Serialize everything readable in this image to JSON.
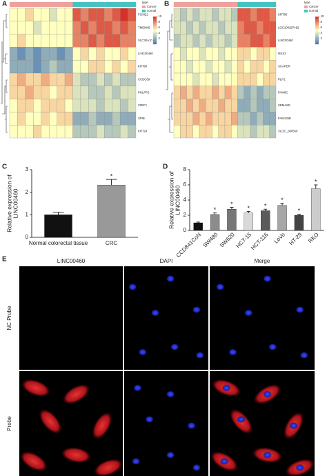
{
  "panel_labels": [
    "A",
    "B",
    "C",
    "D",
    "E"
  ],
  "chart_data": [
    {
      "type": "heatmap",
      "rows": [
        "FOXQ1",
        "TMEM45",
        "SLC30A10",
        "LINC00460",
        "KRT80",
        "CCDC69",
        "PHLPP2",
        "ZZEF1",
        "SPIB",
        "KRT24"
      ],
      "column_types": [
        "Cancer",
        "Cancer",
        "Cancer",
        "Cancer",
        "Cancer",
        "Cancer",
        "Cancer",
        "Cancer",
        "normal",
        "normal",
        "normal",
        "normal",
        "normal",
        "normal",
        "normal",
        "normal"
      ],
      "annotation_title": "type",
      "type_levels": [
        "Cancer",
        "normal"
      ],
      "type_colors": [
        "#f4a09a",
        "#3cc6c4"
      ],
      "colormap": [
        "#4575b4",
        "#ffffbf",
        "#d73027"
      ],
      "clim": [
        0,
        10
      ],
      "cticks": [
        2,
        4,
        6,
        8,
        10
      ],
      "values": [
        [
          5,
          5,
          6,
          5,
          5,
          4,
          5,
          5,
          9,
          8,
          9,
          9,
          8,
          9,
          10,
          9
        ],
        [
          5,
          5,
          5,
          4,
          5,
          5,
          5,
          5,
          8,
          9,
          8,
          9,
          9,
          8,
          9,
          8
        ],
        [
          5,
          6,
          5,
          5,
          5,
          5,
          5,
          5,
          8,
          8,
          9,
          8,
          9,
          9,
          8,
          8
        ],
        [
          2,
          1,
          2,
          1,
          2,
          2,
          1,
          2,
          5,
          6,
          5,
          6,
          5,
          5,
          6,
          5
        ],
        [
          2,
          2,
          2,
          1,
          2,
          3,
          2,
          2,
          5,
          5,
          6,
          6,
          5,
          6,
          5,
          6
        ],
        [
          6,
          7,
          6,
          6,
          7,
          6,
          6,
          7,
          4,
          3,
          3,
          4,
          3,
          4,
          3,
          3
        ],
        [
          6,
          6,
          7,
          6,
          6,
          5,
          6,
          6,
          4,
          4,
          3,
          3,
          4,
          3,
          4,
          4
        ],
        [
          5,
          6,
          6,
          5,
          6,
          6,
          6,
          5,
          4,
          4,
          4,
          3,
          4,
          4,
          3,
          4
        ],
        [
          5,
          6,
          5,
          5,
          6,
          5,
          6,
          6,
          2,
          2,
          3,
          2,
          2,
          3,
          2,
          2
        ],
        [
          5,
          5,
          5,
          6,
          5,
          5,
          5,
          5,
          3,
          3,
          3,
          4,
          3,
          3,
          4,
          3
        ]
      ]
    },
    {
      "type": "heatmap",
      "rows": [
        "KRT80",
        "LOC100287482",
        "LINC00460",
        "MSX2",
        "SCAPER",
        "PLP1",
        "FAM6C",
        "SEMA6D",
        "FAM135B",
        "XLOC_000550"
      ],
      "column_types": [
        "Cancer",
        "Cancer",
        "Cancer",
        "Cancer",
        "Cancer",
        "Cancer",
        "Cancer",
        "Cancer",
        "Cancer",
        "Cancer",
        "normal",
        "normal",
        "normal",
        "normal",
        "normal",
        "normal"
      ],
      "annotation_title": "type",
      "type_levels": [
        "Cancer",
        "normal"
      ],
      "type_colors": [
        "#f4a09a",
        "#3cc6c4"
      ],
      "colormap": [
        "#4575b4",
        "#ffffbf",
        "#d73027"
      ],
      "clim": [
        0,
        10
      ],
      "cticks": [
        2,
        4,
        6,
        8,
        10
      ],
      "values": [
        [
          4,
          3,
          4,
          3,
          4,
          4,
          3,
          4,
          4,
          3,
          9,
          9,
          8,
          9,
          9,
          8
        ],
        [
          4,
          4,
          3,
          4,
          3,
          4,
          4,
          3,
          4,
          4,
          8,
          9,
          9,
          8,
          9,
          9
        ],
        [
          3,
          4,
          4,
          3,
          4,
          3,
          4,
          4,
          3,
          4,
          8,
          8,
          9,
          9,
          8,
          9
        ],
        [
          5,
          4,
          5,
          5,
          4,
          5,
          5,
          4,
          5,
          5,
          6,
          6,
          5,
          6,
          6,
          5
        ],
        [
          5,
          5,
          4,
          5,
          5,
          4,
          5,
          5,
          4,
          5,
          6,
          5,
          6,
          6,
          5,
          6
        ],
        [
          5,
          5,
          5,
          4,
          5,
          5,
          4,
          5,
          5,
          5,
          6,
          6,
          6,
          5,
          6,
          6
        ],
        [
          6,
          7,
          6,
          7,
          6,
          6,
          7,
          6,
          7,
          6,
          3,
          2,
          3,
          2,
          3,
          3
        ],
        [
          6,
          6,
          7,
          6,
          7,
          6,
          6,
          7,
          6,
          6,
          2,
          2,
          3,
          2,
          2,
          3
        ],
        [
          6,
          6,
          6,
          7,
          6,
          7,
          6,
          6,
          6,
          7,
          3,
          3,
          2,
          3,
          2,
          2
        ],
        [
          5,
          6,
          6,
          5,
          6,
          6,
          5,
          6,
          6,
          5,
          4,
          4,
          3,
          4,
          4,
          3
        ]
      ]
    },
    {
      "type": "bar",
      "ylabel": [
        "Relative expression of",
        "LINC00460"
      ],
      "categories": [
        "Normal colorectal tissue",
        "CRC"
      ],
      "values": [
        1.0,
        2.32
      ],
      "errors": [
        0.12,
        0.25
      ],
      "annotations": [
        null,
        "*"
      ],
      "colors": [
        "#111111",
        "#999999"
      ],
      "ylim": [
        0,
        3
      ],
      "yticks": [
        0,
        1,
        2,
        3
      ]
    },
    {
      "type": "bar",
      "ylabel": [
        "Relative expression of",
        "LINC00460"
      ],
      "categories": [
        "CCD841CoN",
        "SW480",
        "SW620",
        "HCT-15",
        "HCT-116",
        "LoVo",
        "HT-29",
        "RKO"
      ],
      "values": [
        1.0,
        2.1,
        2.8,
        2.3,
        2.6,
        3.3,
        2.0,
        5.5
      ],
      "errors": [
        0.1,
        0.2,
        0.25,
        0.2,
        0.2,
        0.3,
        0.15,
        0.5
      ],
      "annotations": [
        null,
        "*",
        "*",
        "*",
        "*",
        "*",
        "*",
        "*"
      ],
      "colors": [
        "#111111",
        "#8c8c8c",
        "#777777",
        "#d9d9d9",
        "#5a5a5a",
        "#a6a6a6",
        "#444444",
        "#cccccc"
      ],
      "ylim": [
        0,
        8
      ],
      "yticks": [
        0,
        2,
        4,
        6,
        8
      ]
    }
  ],
  "microscopy": {
    "columns": [
      "LINC00460",
      "DAPI",
      "Merge"
    ],
    "rows": [
      "NC Probe",
      "Probe"
    ]
  }
}
